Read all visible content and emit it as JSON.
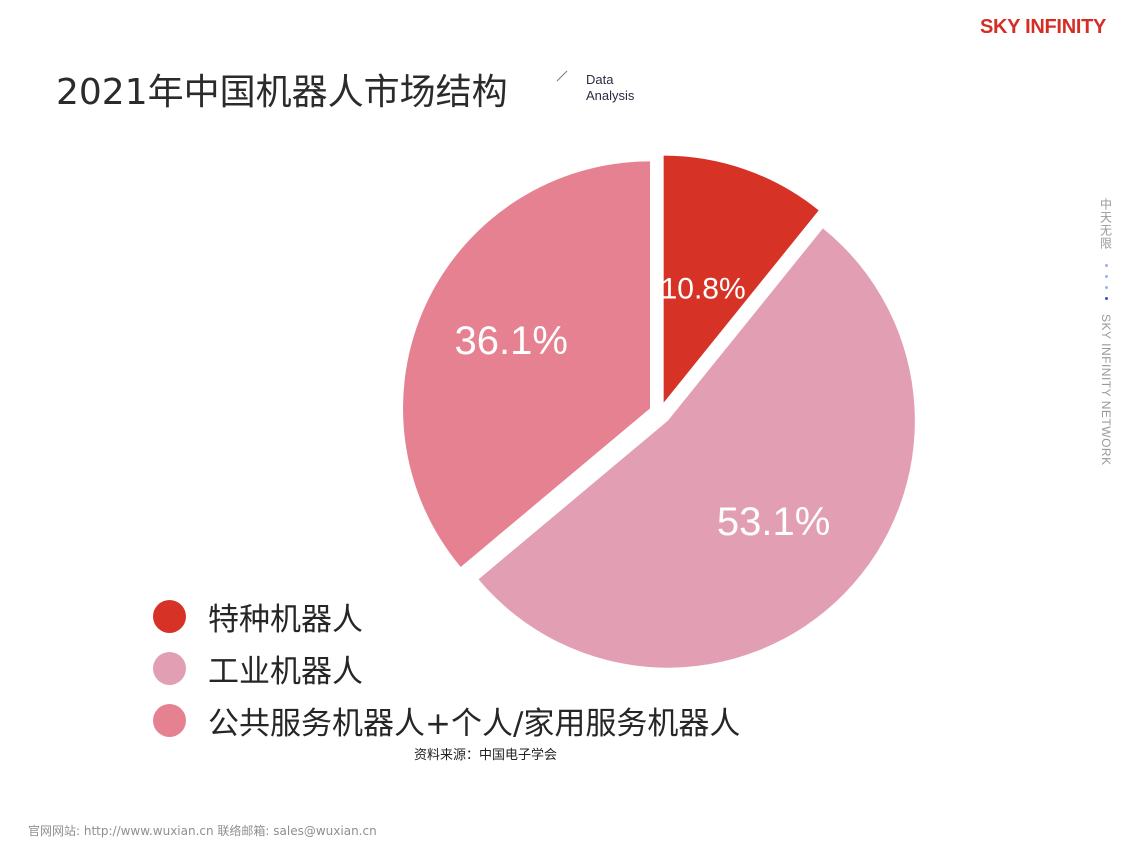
{
  "brand": {
    "logo_text": "SKY INFINITY",
    "color": "#d42e25"
  },
  "header": {
    "title": "2021年中国机器人市场结构",
    "subtitle_en_line1": "Data",
    "subtitle_en_line2": "Analysis"
  },
  "side_label": {
    "cn": "中天无限",
    "en": "SKY INFINITY NETWORK"
  },
  "chart_data": {
    "type": "pie",
    "title": "2021年中国机器人市场结构",
    "series": [
      {
        "name": "特种机器人",
        "value": 10.8,
        "label": "10.8%",
        "color": "#d63326"
      },
      {
        "name": "工业机器人",
        "value": 53.1,
        "label": "53.1%",
        "color": "#e29eb3"
      },
      {
        "name": "公共服务机器人+个人/家用服务机器人",
        "value": 36.1,
        "label": "36.1%",
        "color": "#e68191"
      }
    ],
    "legend_position": "bottom-left",
    "exploded": true
  },
  "source": "资料来源：中国电子学会",
  "footer": "官网网站: http://www.wuxian.cn  联络邮箱: sales@wuxian.cn"
}
